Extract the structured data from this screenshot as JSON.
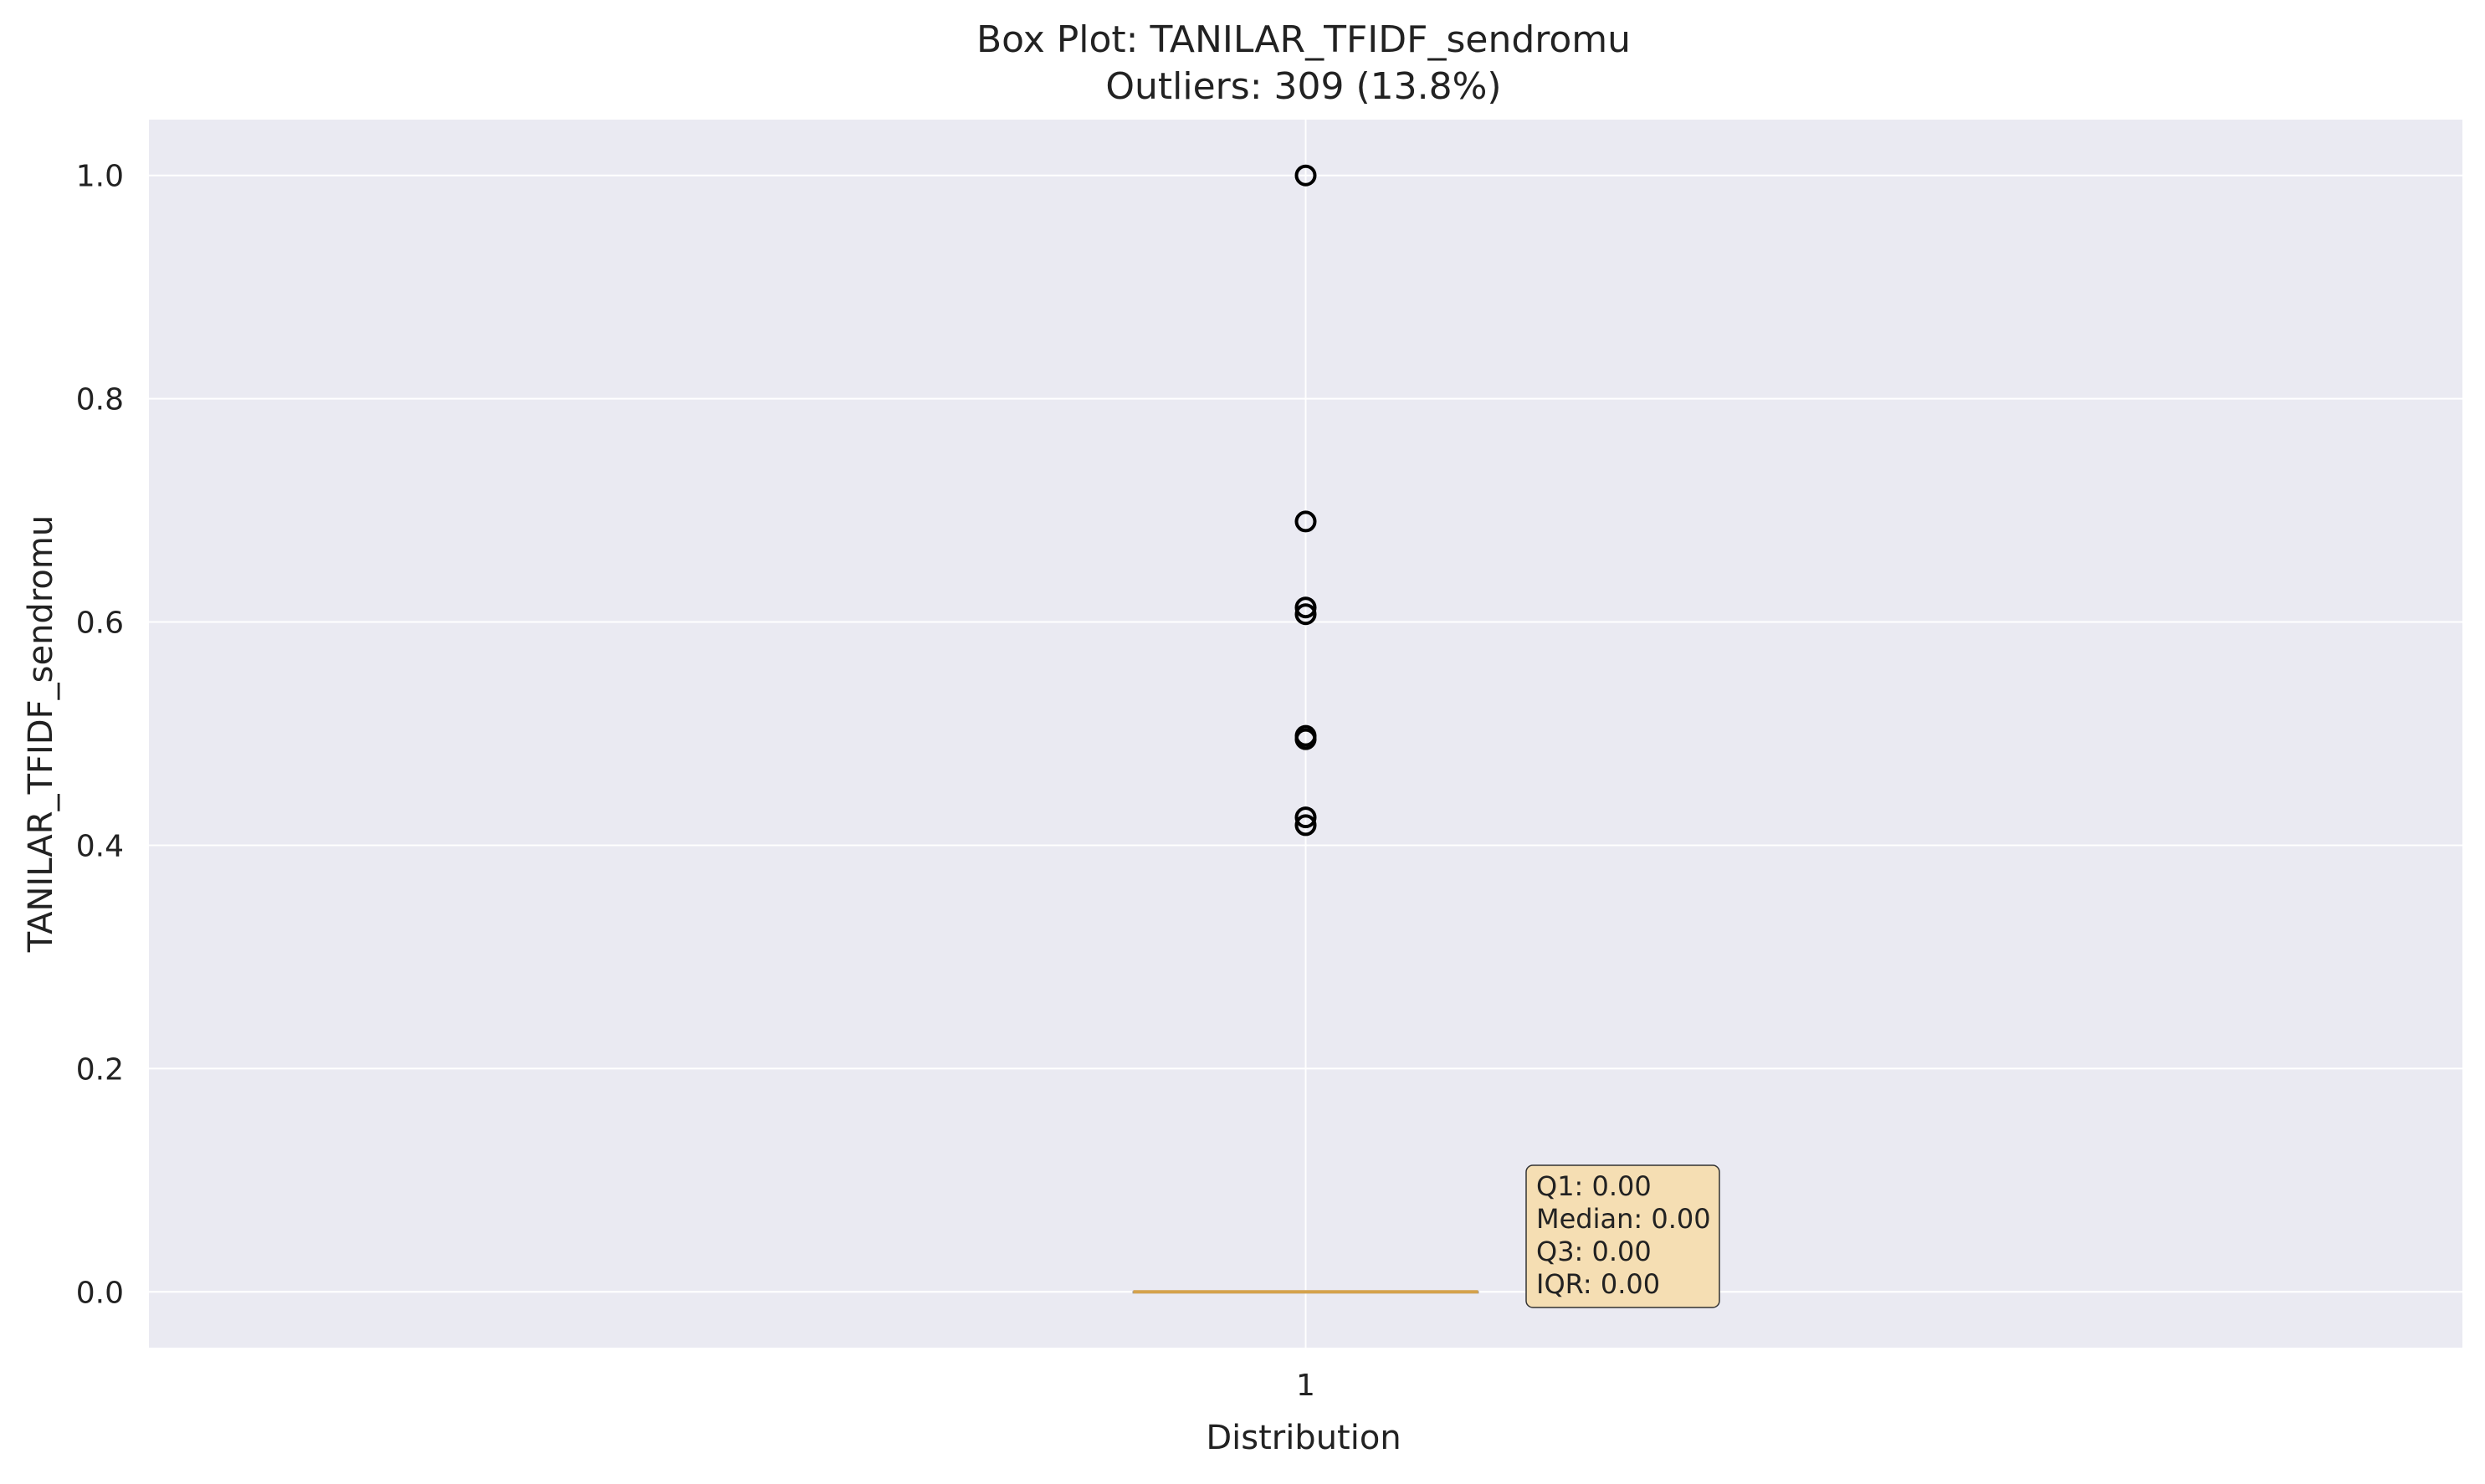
{
  "chart_data": {
    "type": "box",
    "title": "Box Plot: TANILAR_TFIDF_sendromu",
    "subtitle": "Outliers: 309 (13.8%)",
    "xlabel": "Distribution",
    "ylabel": "TANILAR_TFIDF_sendromu",
    "categories": [
      "1"
    ],
    "ylim": [
      -0.05,
      1.05
    ],
    "yticks": [
      "0.0",
      "0.2",
      "0.4",
      "0.6",
      "0.8",
      "1.0"
    ],
    "grid": true,
    "box": {
      "position": 1,
      "min": 0.0,
      "q1": 0.0,
      "median": 0.0,
      "q3": 0.0,
      "max": 0.0
    },
    "outliers": [
      1.0,
      0.69,
      0.613,
      0.607,
      0.498,
      0.495,
      0.425,
      0.418
    ],
    "annotation": [
      "Q1: 0.00",
      "Median: 0.00",
      "Q3: 0.00",
      "IQR: 0.00"
    ],
    "colors": {
      "plot_background": "#EAEAF2",
      "grid": "#FFFFFF",
      "median_line": "#D4A24C",
      "outlier_edge": "#000000",
      "annotation_fill": "#F5DEB3"
    }
  }
}
